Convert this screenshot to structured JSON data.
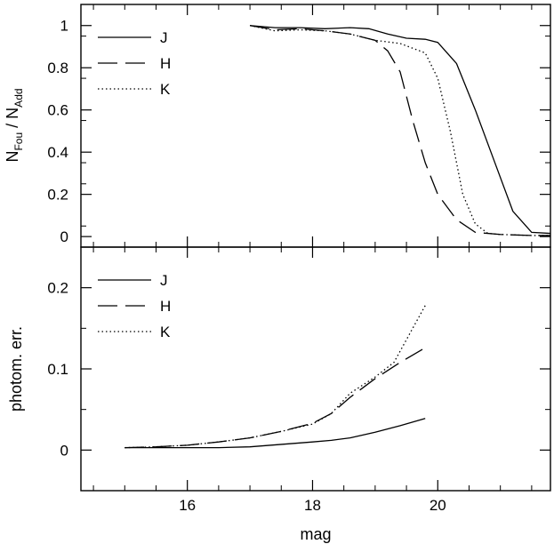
{
  "chart_data": [
    {
      "type": "line",
      "panel": "top",
      "ylabel_parts": {
        "n1": "N",
        "sub1": "Fou",
        "slash": "/",
        "n2": "N",
        "sub2": "Add"
      },
      "xlabel": "",
      "xlim": [
        14.3,
        21.8
      ],
      "ylim": [
        -0.05,
        1.1
      ],
      "yticks": [
        0,
        0.2,
        0.4,
        0.6,
        0.8,
        1
      ],
      "ytick_labels": [
        "0",
        "0.2",
        "0.4",
        "0.6",
        "0.8",
        "1"
      ],
      "legend_position": "top-left",
      "series": [
        {
          "name": "J",
          "dash": "solid",
          "x": [
            17.0,
            17.4,
            17.8,
            18.2,
            18.6,
            18.9,
            19.2,
            19.5,
            19.8,
            20.0,
            20.3,
            20.6,
            20.9,
            21.2,
            21.5,
            21.8
          ],
          "y": [
            1.0,
            0.99,
            0.99,
            0.985,
            0.99,
            0.985,
            0.96,
            0.94,
            0.935,
            0.92,
            0.82,
            0.6,
            0.36,
            0.12,
            0.02,
            0.015
          ]
        },
        {
          "name": "H",
          "dash": "long-dash",
          "x": [
            17.0,
            17.4,
            17.8,
            18.2,
            18.6,
            19.0,
            19.2,
            19.4,
            19.6,
            19.8,
            20.0,
            20.3,
            20.6,
            21.0,
            21.5,
            21.8
          ],
          "y": [
            1.0,
            0.98,
            0.985,
            0.975,
            0.96,
            0.93,
            0.88,
            0.78,
            0.55,
            0.35,
            0.2,
            0.08,
            0.02,
            0.01,
            0.005,
            0.005
          ]
        },
        {
          "name": "K",
          "dash": "dotted",
          "x": [
            17.0,
            17.4,
            17.8,
            18.2,
            18.6,
            19.0,
            19.4,
            19.8,
            20.0,
            20.2,
            20.4,
            20.6,
            20.8,
            21.0,
            21.5,
            21.8
          ],
          "y": [
            1.0,
            0.975,
            0.98,
            0.975,
            0.96,
            0.93,
            0.915,
            0.87,
            0.75,
            0.5,
            0.2,
            0.06,
            0.015,
            0.01,
            0.005,
            0.005
          ]
        }
      ]
    },
    {
      "type": "line",
      "panel": "bottom",
      "ylabel": "photom. err.",
      "xlabel": "mag",
      "xlim": [
        14.3,
        21.8
      ],
      "ylim": [
        -0.05,
        0.25
      ],
      "yticks": [
        0,
        0.1,
        0.2
      ],
      "ytick_labels": [
        "0",
        "0.1",
        "0.2"
      ],
      "xticks": [
        16,
        18,
        20
      ],
      "xtick_labels": [
        "16",
        "18",
        "20"
      ],
      "legend_position": "top-left",
      "series": [
        {
          "name": "J",
          "dash": "solid",
          "x": [
            15.0,
            15.5,
            16.0,
            16.5,
            17.0,
            17.5,
            18.0,
            18.3,
            18.6,
            19.0,
            19.4,
            19.8
          ],
          "y": [
            0.003,
            0.003,
            0.003,
            0.003,
            0.004,
            0.007,
            0.01,
            0.012,
            0.015,
            0.022,
            0.03,
            0.039
          ]
        },
        {
          "name": "H",
          "dash": "long-dash",
          "x": [
            15.0,
            15.5,
            16.0,
            16.5,
            17.0,
            17.5,
            18.0,
            18.3,
            18.6,
            19.0,
            19.4,
            19.8
          ],
          "y": [
            0.003,
            0.004,
            0.006,
            0.01,
            0.015,
            0.023,
            0.033,
            0.045,
            0.065,
            0.088,
            0.108,
            0.126
          ]
        },
        {
          "name": "K",
          "dash": "dotted",
          "x": [
            15.0,
            15.5,
            16.0,
            16.5,
            17.0,
            17.5,
            18.0,
            18.3,
            18.6,
            19.0,
            19.3,
            19.6,
            19.8
          ],
          "y": [
            0.003,
            0.004,
            0.006,
            0.01,
            0.015,
            0.023,
            0.032,
            0.045,
            0.07,
            0.09,
            0.108,
            0.15,
            0.178
          ]
        }
      ]
    }
  ],
  "shared_x": {
    "major_ticks": [
      16,
      18,
      20
    ],
    "minor_ticks": [
      14.5,
      15,
      15.5,
      16.5,
      17,
      17.5,
      18.5,
      19,
      19.5,
      20.5,
      21,
      21.5
    ]
  }
}
